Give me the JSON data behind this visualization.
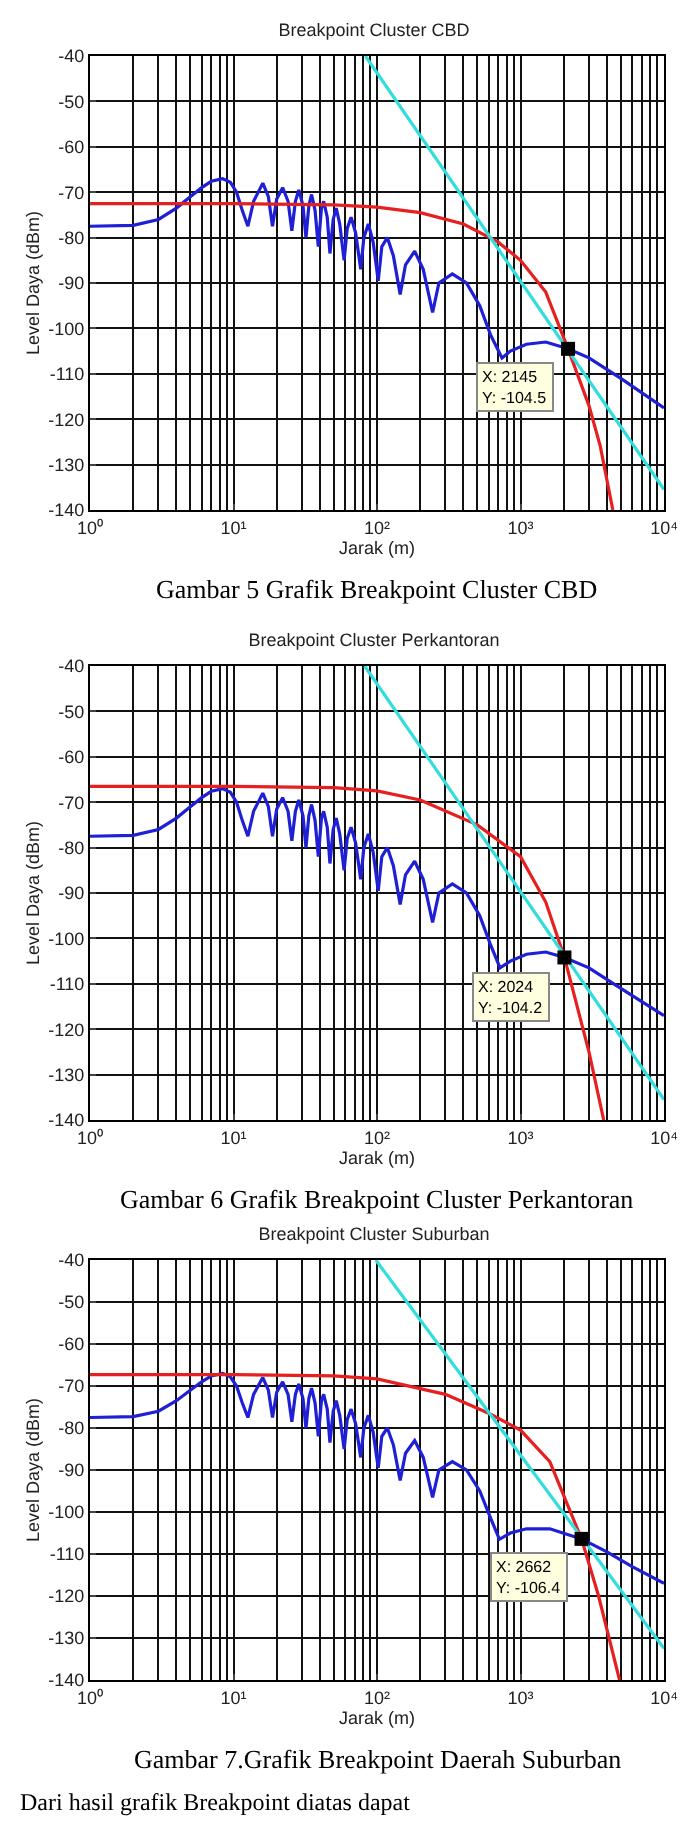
{
  "chart_data": [
    {
      "type": "line",
      "title": "Breakpoint Cluster CBD",
      "xlabel": "Jarak (m)",
      "ylabel": "Level Daya (dBm)",
      "log": "x",
      "grid": true,
      "xlim": [
        1,
        10000
      ],
      "xticks": [
        {
          "value": 1,
          "label": "10⁰"
        },
        {
          "value": 10,
          "label": "10¹"
        },
        {
          "value": 100,
          "label": "10²"
        },
        {
          "value": 1000,
          "label": "10³"
        },
        {
          "value": 10000,
          "label": "10⁴"
        }
      ],
      "ylim": [
        -140,
        -40
      ],
      "yticks": [
        -140,
        -130,
        -120,
        -110,
        -100,
        -90,
        -80,
        -70,
        -60,
        -50,
        -40
      ],
      "series": [
        {
          "color": "#1f1fd6",
          "x": [
            1,
            2,
            3,
            4,
            5,
            6,
            7,
            8.4,
            9.5,
            10.5,
            11.5,
            12.6,
            13.8,
            16,
            17.5,
            18.7,
            20,
            22,
            24,
            25.5,
            27,
            28.5,
            30.5,
            32,
            33.5,
            35,
            37,
            39,
            41,
            42.5,
            45,
            47,
            49.5,
            52,
            55,
            59,
            62,
            66,
            71,
            77,
            81,
            87,
            94,
            102,
            108,
            118,
            130,
            145,
            158,
            183,
            210,
            244,
            270,
            335,
            420,
            520,
            620,
            743,
            850,
            1100,
            1500,
            2145,
            3000,
            5000,
            10000
          ],
          "values": [
            -77.5,
            -77.3,
            -76,
            -73.5,
            -71,
            -69,
            -67.6,
            -67,
            -67.8,
            -70,
            -74,
            -77.5,
            -72,
            -68,
            -71,
            -77.5,
            -71.5,
            -69,
            -72,
            -78.5,
            -72,
            -69.5,
            -73,
            -80,
            -73,
            -70.5,
            -74,
            -82,
            -73.5,
            -72,
            -75.5,
            -83.5,
            -76,
            -73.5,
            -77,
            -85,
            -78,
            -75.5,
            -79,
            -87,
            -80,
            -77,
            -81,
            -89.5,
            -82,
            -80,
            -84,
            -92.5,
            -86,
            -83,
            -87,
            -96.5,
            -90,
            -88,
            -90,
            -95,
            -101.5,
            -106.5,
            -105,
            -103.5,
            -103,
            -104.5,
            -106.5,
            -111,
            -117.5
          ]
        },
        {
          "color": "#e62020",
          "x": [
            1,
            10,
            50,
            100,
            200,
            400,
            700,
            1000,
            1500,
            2145,
            3000,
            3600,
            4400
          ],
          "values": [
            -72.5,
            -72.5,
            -72.8,
            -73.3,
            -74.5,
            -77,
            -81,
            -85,
            -92,
            -104.5,
            -117,
            -126,
            -140
          ]
        },
        {
          "color": "#33dddd",
          "x": [
            83,
            10000
          ],
          "values": [
            -40,
            -135.5
          ]
        },
        {
          "type": "scatter",
          "marker": "square",
          "color": "#000000",
          "x": [
            2145
          ],
          "values": [
            -104.5
          ]
        }
      ],
      "annotations": [
        {
          "text": "X: 2145\nY: -104.5",
          "x": 2145,
          "y": -104.5
        },
        "Gambar 5 Grafik Breakpoint Cluster CBD"
      ]
    },
    {
      "type": "line",
      "title": "Breakpoint Cluster Perkantoran",
      "xlabel": "Jarak (m)",
      "ylabel": "Level Daya (dBm)",
      "log": "x",
      "grid": true,
      "xlim": [
        1,
        10000
      ],
      "xticks": [
        {
          "value": 1,
          "label": "10⁰"
        },
        {
          "value": 10,
          "label": "10¹"
        },
        {
          "value": 100,
          "label": "10²"
        },
        {
          "value": 1000,
          "label": "10³"
        },
        {
          "value": 10000,
          "label": "10⁴"
        }
      ],
      "ylim": [
        -140,
        -40
      ],
      "yticks": [
        -140,
        -130,
        -120,
        -110,
        -100,
        -90,
        -80,
        -70,
        -60,
        -50,
        -40
      ],
      "series": [
        {
          "color": "#1f1fd6",
          "x": [
            1,
            2,
            3,
            4,
            5,
            6,
            7,
            8.4,
            9.5,
            10.5,
            11.5,
            12.6,
            13.8,
            16,
            17.5,
            18.7,
            20,
            22,
            24,
            25.5,
            27,
            28.5,
            30.5,
            32,
            33.5,
            35,
            37,
            39,
            41,
            42.5,
            45,
            47,
            49.5,
            52,
            55,
            59,
            62,
            66,
            71,
            77,
            81,
            87,
            94,
            102,
            108,
            118,
            130,
            145,
            158,
            183,
            210,
            244,
            270,
            335,
            420,
            520,
            620,
            720,
            850,
            1100,
            1500,
            2024,
            3000,
            5000,
            10000
          ],
          "values": [
            -77.5,
            -77.3,
            -76,
            -73.5,
            -71,
            -69,
            -67.6,
            -67,
            -67.8,
            -70,
            -74,
            -77.5,
            -72,
            -68,
            -71,
            -77.5,
            -71.5,
            -69,
            -72,
            -78.5,
            -72,
            -69.5,
            -73,
            -80,
            -73,
            -70.5,
            -74,
            -82,
            -73.5,
            -72,
            -75.5,
            -83.5,
            -76,
            -73.5,
            -77,
            -85,
            -78,
            -75.5,
            -79,
            -87,
            -80,
            -77,
            -81,
            -89.5,
            -82,
            -80,
            -84,
            -92.5,
            -86,
            -83,
            -87,
            -96.5,
            -90,
            -88,
            -90,
            -95,
            -101.5,
            -106.5,
            -105,
            -103.5,
            -103,
            -104.2,
            -106.5,
            -111,
            -117
          ]
        },
        {
          "color": "#e62020",
          "x": [
            1,
            10,
            50,
            100,
            200,
            500,
            1000,
            1500,
            2024,
            3000,
            3800
          ],
          "values": [
            -66.5,
            -66.5,
            -66.8,
            -67.5,
            -69.5,
            -75,
            -82,
            -92,
            -104.2,
            -125,
            -140
          ]
        },
        {
          "color": "#33dddd",
          "x": [
            82,
            10000
          ],
          "values": [
            -40,
            -135.5
          ]
        },
        {
          "type": "scatter",
          "marker": "square",
          "color": "#000000",
          "x": [
            2024
          ],
          "values": [
            -104.2
          ]
        }
      ],
      "annotations": [
        {
          "text": "X: 2024\nY: -104.2",
          "x": 2024,
          "y": -104.2
        },
        "Gambar 6 Grafik Breakpoint Cluster Perkantoran"
      ]
    },
    {
      "type": "line",
      "title": "Breakpoint Cluster Suburban",
      "xlabel": "Jarak (m)",
      "ylabel": "Level Daya (dBm)",
      "log": "x",
      "grid": true,
      "xlim": [
        1,
        10000
      ],
      "xticks": [
        {
          "value": 1,
          "label": "10⁰"
        },
        {
          "value": 10,
          "label": "10¹"
        },
        {
          "value": 100,
          "label": "10²"
        },
        {
          "value": 1000,
          "label": "10³"
        },
        {
          "value": 10000,
          "label": "10⁴"
        }
      ],
      "ylim": [
        -140,
        -40
      ],
      "yticks": [
        -140,
        -130,
        -120,
        -110,
        -100,
        -90,
        -80,
        -70,
        -60,
        -50,
        -40
      ],
      "series": [
        {
          "color": "#1f1fd6",
          "x": [
            1,
            2,
            3,
            4,
            5,
            6,
            7,
            8.4,
            9.5,
            10.5,
            11.5,
            12.6,
            13.8,
            16,
            17.5,
            18.7,
            20,
            22,
            24,
            25.5,
            27,
            28.5,
            30.5,
            32,
            33.5,
            35,
            37,
            39,
            41,
            42.5,
            45,
            47,
            49.5,
            52,
            55,
            59,
            62,
            66,
            71,
            77,
            81,
            87,
            94,
            102,
            108,
            118,
            130,
            145,
            158,
            183,
            210,
            244,
            270,
            335,
            420,
            520,
            620,
            713,
            850,
            1100,
            1600,
            2662,
            4000,
            6000,
            10000
          ],
          "values": [
            -77.5,
            -77.3,
            -76,
            -73.5,
            -71,
            -69,
            -67.6,
            -67,
            -67.8,
            -70,
            -74,
            -77.5,
            -72,
            -68,
            -71,
            -77.5,
            -71.5,
            -69,
            -72,
            -78.5,
            -72,
            -69.5,
            -73,
            -80,
            -73,
            -70.5,
            -74,
            -82,
            -73.5,
            -72,
            -75.5,
            -83.5,
            -76,
            -73.5,
            -77,
            -85,
            -78,
            -75.5,
            -79,
            -87,
            -80,
            -77,
            -81,
            -89.5,
            -82,
            -80,
            -84,
            -92.5,
            -86,
            -83,
            -87,
            -96.5,
            -90,
            -88,
            -90,
            -95,
            -101.5,
            -106.5,
            -105,
            -104,
            -104,
            -106.4,
            -109.5,
            -113,
            -117
          ]
        },
        {
          "color": "#e62020",
          "x": [
            1,
            10,
            50,
            100,
            300,
            600,
            1000,
            1600,
            2662,
            3500,
            4900
          ],
          "values": [
            -67.3,
            -67.3,
            -67.6,
            -68.3,
            -72,
            -76.5,
            -80.5,
            -88,
            -106.4,
            -120,
            -140
          ]
        },
        {
          "color": "#33dddd",
          "x": [
            98,
            10000
          ],
          "values": [
            -40,
            -132.5
          ]
        },
        {
          "type": "scatter",
          "marker": "square",
          "color": "#000000",
          "x": [
            2662
          ],
          "values": [
            -106.4
          ]
        }
      ],
      "annotations": [
        {
          "text": "X: 2662\nY: -106.4",
          "x": 2662,
          "y": -106.4
        },
        "Gambar 7.Grafik Breakpoint Daerah Suburban",
        "Dari hasil grafik Breakpoint diatas dapat"
      ]
    }
  ]
}
